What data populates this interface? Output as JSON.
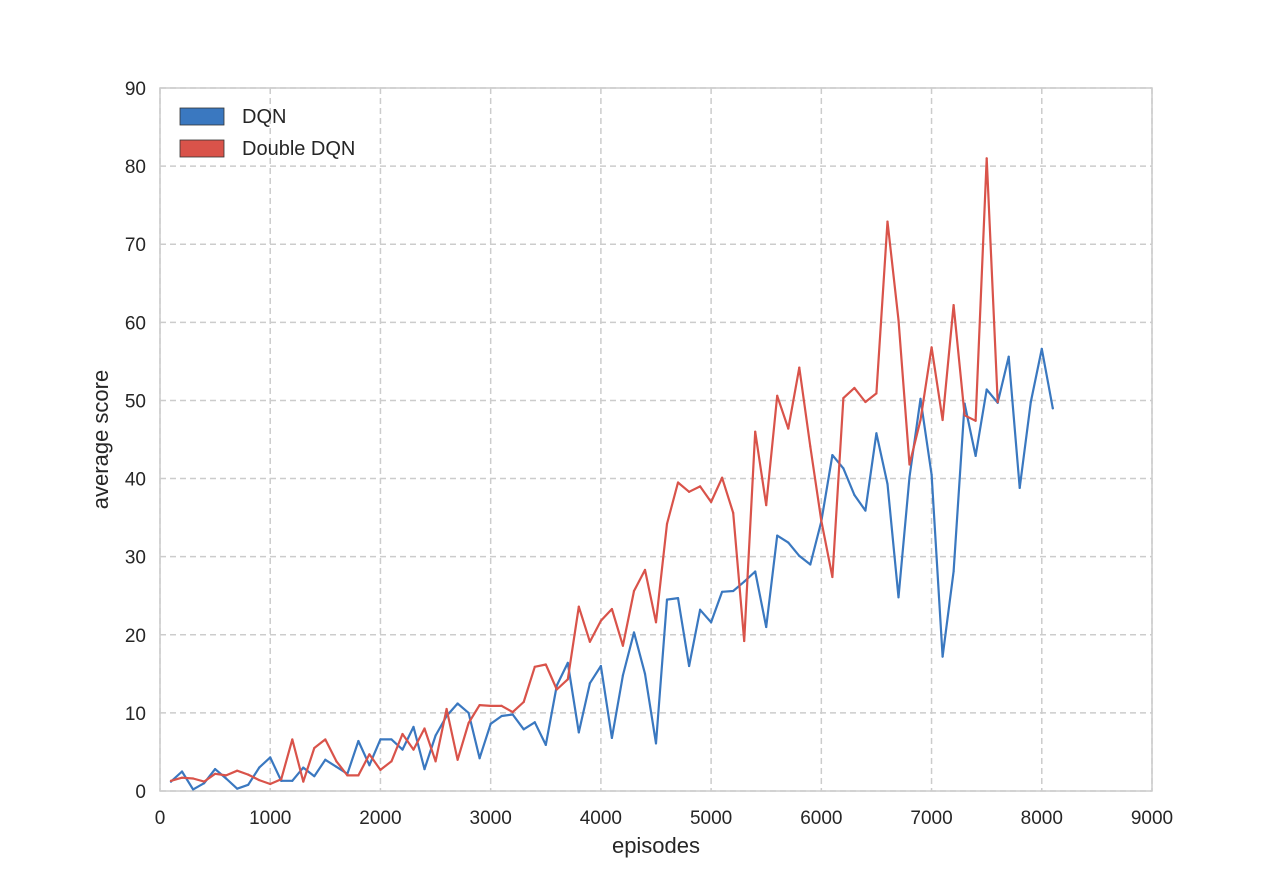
{
  "chart_data": {
    "type": "line",
    "title": "",
    "xlabel": "episodes",
    "ylabel": "average score",
    "xlim": [
      0,
      9000
    ],
    "ylim": [
      0,
      90
    ],
    "xticks": [
      0,
      1000,
      2000,
      3000,
      4000,
      5000,
      6000,
      7000,
      8000,
      9000
    ],
    "yticks": [
      0,
      10,
      20,
      30,
      40,
      50,
      60,
      70,
      80,
      90
    ],
    "grid": true,
    "legend_position": "top-left",
    "series": [
      {
        "name": "DQN",
        "color": "#3a78c0",
        "x": [
          100,
          200,
          300,
          400,
          500,
          600,
          700,
          800,
          900,
          1000,
          1100,
          1200,
          1300,
          1400,
          1500,
          1600,
          1700,
          1800,
          1900,
          2000,
          2100,
          2200,
          2300,
          2400,
          2500,
          2600,
          2700,
          2800,
          2900,
          3000,
          3100,
          3200,
          3300,
          3400,
          3500,
          3600,
          3700,
          3800,
          3900,
          4000,
          4100,
          4200,
          4300,
          4400,
          4500,
          4600,
          4700,
          4800,
          4900,
          5000,
          5100,
          5200,
          5300,
          5400,
          5500,
          5600,
          5700,
          5800,
          5900,
          6000,
          6100,
          6200,
          6300,
          6400,
          6500,
          6600,
          6700,
          6800,
          6900,
          7000,
          7100,
          7200,
          7300,
          7400,
          7500,
          7600,
          7700,
          7800,
          7900,
          8000,
          8100
        ],
        "y": [
          1.2,
          2.5,
          0.2,
          1.0,
          2.8,
          1.6,
          0.3,
          0.8,
          3.0,
          4.3,
          1.3,
          1.3,
          3.0,
          1.9,
          4.0,
          3.1,
          2.2,
          6.4,
          3.3,
          6.6,
          6.6,
          5.3,
          8.2,
          2.8,
          7.1,
          9.6,
          11.2,
          10.0,
          4.2,
          8.6,
          9.6,
          9.8,
          7.9,
          8.8,
          5.9,
          13.5,
          16.4,
          7.5,
          13.8,
          16.0,
          6.8,
          14.8,
          20.3,
          15.0,
          6.1,
          24.5,
          24.7,
          16.0,
          23.2,
          21.6,
          25.5,
          25.6,
          26.8,
          28.1,
          21.0,
          32.7,
          31.8,
          30.1,
          29.0,
          34.5,
          43.0,
          41.3,
          37.9,
          35.9,
          45.8,
          39.3,
          24.8,
          40.2,
          50.2,
          40.5,
          17.2,
          28.1,
          49.6,
          42.9,
          51.4,
          49.7,
          55.6,
          38.8,
          49.8,
          56.6,
          49.0
        ]
      },
      {
        "name": "Double DQN",
        "color": "#d9534a",
        "x": [
          100,
          200,
          300,
          400,
          500,
          600,
          700,
          800,
          900,
          1000,
          1100,
          1200,
          1300,
          1400,
          1500,
          1600,
          1700,
          1800,
          1900,
          2000,
          2100,
          2200,
          2300,
          2400,
          2500,
          2600,
          2700,
          2800,
          2900,
          3000,
          3100,
          3200,
          3300,
          3400,
          3500,
          3600,
          3700,
          3800,
          3900,
          4000,
          4100,
          4200,
          4300,
          4400,
          4500,
          4600,
          4700,
          4800,
          4900,
          5000,
          5100,
          5200,
          5300,
          5400,
          5500,
          5600,
          5700,
          5800,
          5900,
          6000,
          6100,
          6200,
          6300,
          6400,
          6500,
          6600,
          6700,
          6800,
          6900,
          7000,
          7100,
          7200,
          7300,
          7400,
          7500,
          7600
        ],
        "y": [
          1.3,
          1.7,
          1.6,
          1.2,
          2.2,
          2.0,
          2.6,
          2.1,
          1.4,
          0.9,
          1.5,
          6.6,
          1.2,
          5.5,
          6.6,
          3.8,
          2.0,
          2.0,
          4.7,
          2.7,
          3.8,
          7.3,
          5.3,
          8.0,
          3.8,
          10.5,
          4.0,
          8.7,
          11.0,
          10.9,
          10.9,
          10.1,
          11.4,
          15.9,
          16.2,
          13.0,
          14.3,
          23.6,
          19.1,
          21.8,
          23.3,
          18.6,
          25.6,
          28.3,
          21.6,
          34.2,
          39.5,
          38.3,
          39.0,
          37.0,
          40.1,
          35.6,
          19.2,
          46.0,
          36.6,
          50.6,
          46.4,
          54.2,
          44.1,
          34.6,
          27.4,
          50.3,
          51.6,
          49.8,
          50.9,
          72.9,
          60.3,
          41.8,
          47.5,
          56.8,
          47.5,
          62.2,
          48.1,
          47.4,
          81.0,
          49.8
        ]
      }
    ]
  }
}
